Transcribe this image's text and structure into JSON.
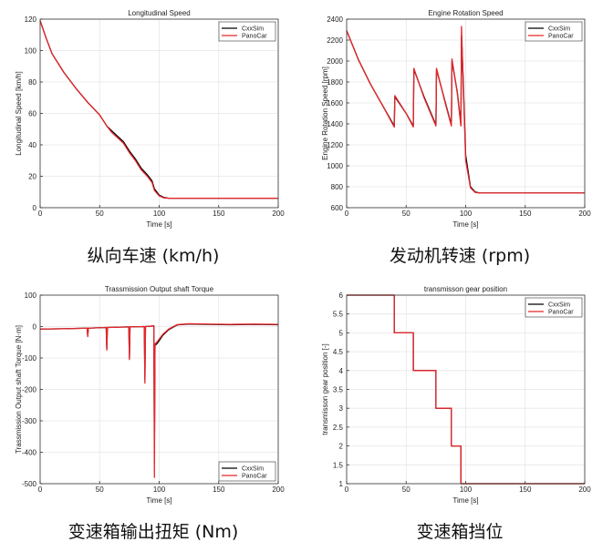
{
  "colors": {
    "cxxsim": "#000000",
    "panocar": "#e8262b",
    "grid": "#e6e6e6",
    "axes": "#333333"
  },
  "chart_data": [
    {
      "type": "line",
      "title": "Longitudinal Speed",
      "xlabel": "Time [s]",
      "ylabel": "Longitudinal Speed [km/h]",
      "caption": "纵向车速 (km/h)",
      "xlim": [
        0,
        200
      ],
      "ylim": [
        0,
        120
      ],
      "xticks": [
        0,
        50,
        100,
        150,
        200
      ],
      "yticks": [
        0,
        20,
        40,
        60,
        80,
        100,
        120
      ],
      "grid": true,
      "legend_position": "top-right",
      "series": [
        {
          "name": "CxxSim",
          "x": [
            0,
            5,
            10,
            20,
            30,
            40,
            50,
            56,
            60,
            70,
            75,
            80,
            85,
            90,
            94,
            96,
            100,
            104,
            108,
            112,
            120,
            200
          ],
          "y": [
            119,
            108,
            98,
            86,
            76,
            67,
            59,
            52,
            49,
            42,
            36,
            31,
            25,
            21,
            17,
            12,
            8,
            6.5,
            6,
            6,
            6,
            6
          ]
        },
        {
          "name": "PanoCar",
          "x": [
            0,
            5,
            10,
            20,
            30,
            40,
            50,
            56,
            60,
            70,
            75,
            80,
            85,
            90,
            94,
            96,
            100,
            104,
            108,
            112,
            120,
            200
          ],
          "y": [
            119,
            108,
            98,
            86,
            76,
            67,
            59,
            52,
            48,
            41,
            35,
            30,
            24,
            20,
            16,
            11,
            7.5,
            6.2,
            6,
            6,
            6,
            6
          ]
        }
      ]
    },
    {
      "type": "line",
      "title": "Engine Rotation Speed",
      "xlabel": "Time [s]",
      "ylabel": "Engine Rotation Speed [rpm]",
      "caption": "发动机转速 (rpm)",
      "xlim": [
        0,
        200
      ],
      "ylim": [
        600,
        2400
      ],
      "xticks": [
        0,
        50,
        100,
        150,
        200
      ],
      "yticks": [
        600,
        800,
        1000,
        1200,
        1400,
        1600,
        1800,
        2000,
        2200,
        2400
      ],
      "grid": true,
      "legend_position": "top-right",
      "series": [
        {
          "name": "CxxSim",
          "x": [
            0,
            5,
            10,
            20,
            30,
            40,
            40.5,
            50,
            56,
            56.5,
            65,
            75,
            75.5,
            83,
            88,
            88.5,
            93,
            96,
            96.5,
            98,
            100,
            104,
            108,
            112,
            120,
            200
          ],
          "y": [
            2290,
            2150,
            2010,
            1780,
            1580,
            1380,
            1660,
            1500,
            1380,
            1920,
            1660,
            1390,
            1920,
            1600,
            1390,
            2000,
            1700,
            1390,
            2240,
            1800,
            1100,
            800,
            750,
            740,
            740,
            740
          ]
        },
        {
          "name": "PanoCar",
          "x": [
            0,
            5,
            10,
            20,
            30,
            40,
            40.5,
            50,
            56,
            56.5,
            65,
            75,
            75.5,
            83,
            88,
            88.5,
            93,
            96,
            96.5,
            98,
            100,
            104,
            108,
            112,
            120,
            200
          ],
          "y": [
            2290,
            2150,
            2010,
            1780,
            1580,
            1370,
            1670,
            1500,
            1370,
            1930,
            1650,
            1380,
            1930,
            1590,
            1380,
            2020,
            1690,
            1380,
            2330,
            1750,
            1050,
            790,
            745,
            740,
            740,
            740
          ]
        }
      ]
    },
    {
      "type": "line",
      "title": "Trassmission Output shaft Torque",
      "xlabel": "Time [s]",
      "ylabel": "Trassmission Output shaft Torque [N·m]",
      "caption": "变速箱输出扭矩 (Nm)",
      "xlim": [
        0,
        200
      ],
      "ylim": [
        -500,
        100
      ],
      "xticks": [
        0,
        50,
        100,
        150,
        200
      ],
      "yticks": [
        -500,
        -400,
        -300,
        -200,
        -100,
        0,
        100
      ],
      "grid": true,
      "legend_position": "bottom-right",
      "series": [
        {
          "name": "CxxSim",
          "x": [
            0,
            20,
            39.5,
            40,
            40.5,
            55.5,
            56,
            56.5,
            74.5,
            75,
            75.5,
            87.5,
            88,
            88.5,
            95.5,
            96,
            96.5,
            98,
            100,
            103,
            108,
            115,
            125,
            140,
            160,
            180,
            200
          ],
          "y": [
            -8,
            -7,
            -5,
            -30,
            -5,
            -3,
            -70,
            -3,
            -1,
            -100,
            -1,
            0,
            -170,
            0,
            2,
            -380,
            -60,
            -55,
            -45,
            -28,
            -10,
            5,
            8,
            7,
            6,
            7,
            6
          ]
        },
        {
          "name": "PanoCar",
          "x": [
            0,
            20,
            39.5,
            40,
            40.5,
            55.5,
            56,
            56.5,
            74.5,
            75,
            75.5,
            87.5,
            88,
            88.5,
            95.5,
            96,
            96.5,
            98,
            100,
            103,
            108,
            115,
            125,
            140,
            160,
            180,
            200
          ],
          "y": [
            -8,
            -7,
            -5,
            -32,
            -5,
            -3,
            -75,
            -3,
            -1,
            -105,
            -1,
            0,
            -180,
            0,
            2,
            -480,
            -55,
            -50,
            -40,
            -25,
            -8,
            6,
            9,
            8,
            7,
            8,
            7
          ]
        }
      ]
    },
    {
      "type": "line",
      "title": "transmisson gear position",
      "xlabel": "Time [s]",
      "ylabel": "transmisson gear position [-]",
      "caption": "变速箱挡位",
      "xlim": [
        0,
        200
      ],
      "ylim": [
        1,
        6
      ],
      "xticks": [
        0,
        50,
        100,
        150,
        200
      ],
      "yticks": [
        1,
        1.5,
        2,
        2.5,
        3,
        3.5,
        4,
        4.5,
        5,
        5.5,
        6
      ],
      "grid": true,
      "legend_position": "top-right",
      "series": [
        {
          "name": "CxxSim",
          "x": [
            0,
            40,
            40,
            56,
            56,
            75,
            75,
            88,
            88,
            96,
            96,
            200
          ],
          "y": [
            6,
            6,
            5,
            5,
            4,
            4,
            3,
            3,
            2,
            2,
            1,
            1
          ]
        },
        {
          "name": "PanoCar",
          "x": [
            0,
            40,
            40,
            56,
            56,
            75,
            75,
            88,
            88,
            96,
            96,
            200
          ],
          "y": [
            6,
            6,
            5,
            5,
            4,
            4,
            3,
            3,
            2,
            2,
            1,
            1
          ]
        }
      ]
    }
  ]
}
